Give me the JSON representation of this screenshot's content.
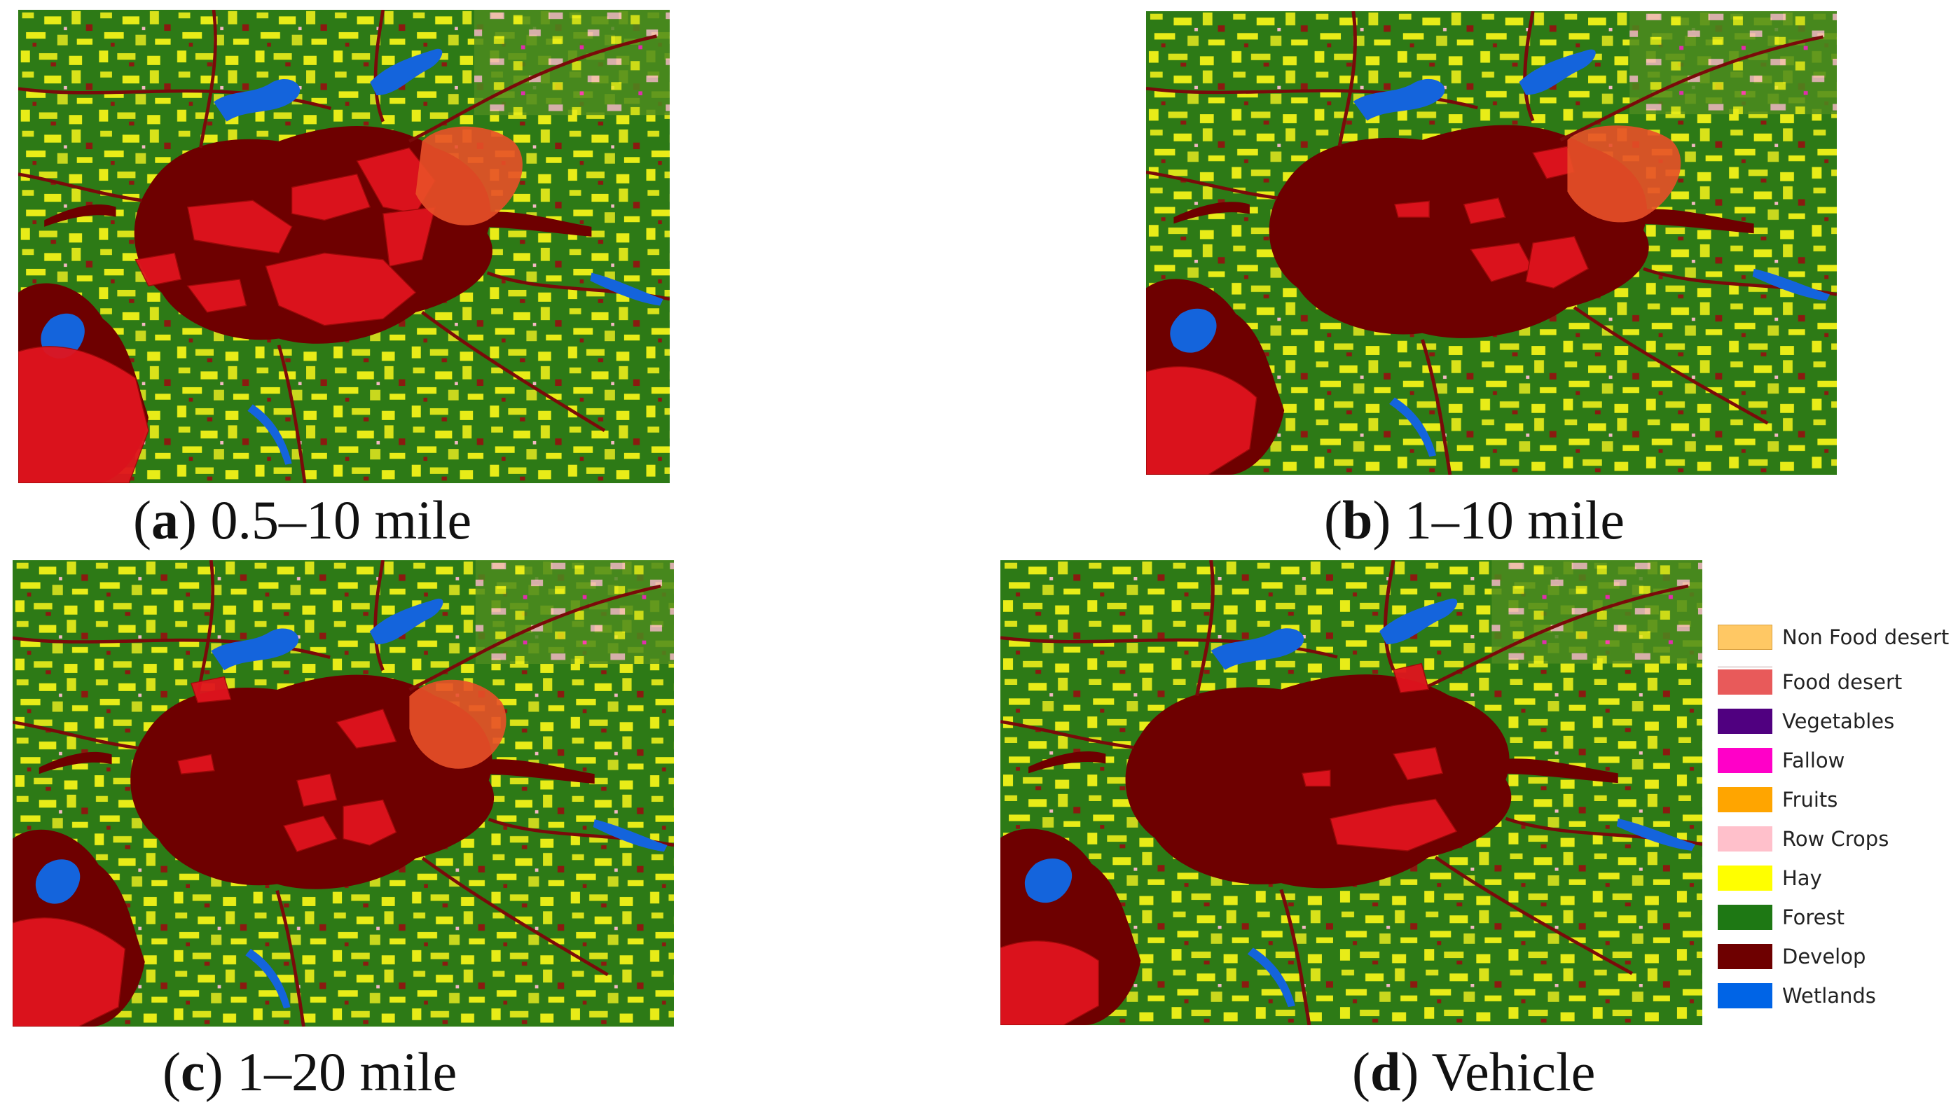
{
  "panels": [
    {
      "id": "a",
      "letter": "a",
      "label": "0.5–10 mile"
    },
    {
      "id": "b",
      "letter": "b",
      "label": "1–10 mile"
    },
    {
      "id": "c",
      "letter": "c",
      "label": "1–20 mile"
    },
    {
      "id": "d",
      "letter": "d",
      "label": "Vehicle"
    }
  ],
  "legend": [
    {
      "label": "Non Food desert",
      "color": "#ffc864"
    },
    {
      "label": "Food desert",
      "color": "#e85a5a"
    },
    {
      "label": "Vegetables",
      "color": "#500080"
    },
    {
      "label": "Fallow",
      "color": "#ff00c8"
    },
    {
      "label": "Fruits",
      "color": "#ffa500"
    },
    {
      "label": "Row Crops",
      "color": "#ffc0cb"
    },
    {
      "label": "Hay",
      "color": "#ffff00"
    },
    {
      "label": "Forest",
      "color": "#1e7814"
    },
    {
      "label": "Develop",
      "color": "#6e0000"
    },
    {
      "label": "Wetlands",
      "color": "#0064e6"
    }
  ],
  "colors": {
    "forest": "#2d7a16",
    "hay": "#e8ec18",
    "develop": "#6e0000",
    "food_desert": "#e0141e",
    "wetlands": "#1464dc",
    "row_crops": "#f4b8c4",
    "fallow": "#ff20c8"
  }
}
